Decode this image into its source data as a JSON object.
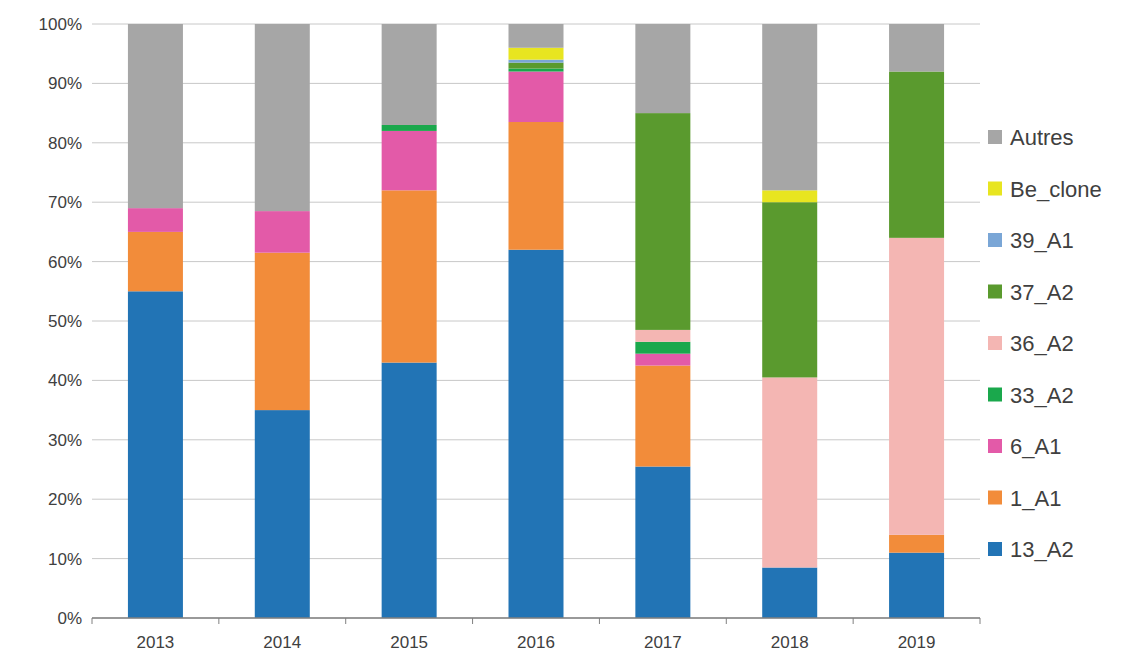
{
  "chart_data": {
    "type": "bar",
    "stacked": true,
    "grid": true,
    "legend": "right",
    "categories": [
      "2013",
      "2014",
      "2015",
      "2016",
      "2017",
      "2018",
      "2019"
    ],
    "series": [
      {
        "name": "13_A2",
        "color": "#2274b5",
        "values": [
          55,
          35,
          43,
          62,
          25.5,
          8.5,
          11
        ]
      },
      {
        "name": "1_A1",
        "color": "#f28c3a",
        "values": [
          10,
          26.5,
          29,
          21.5,
          17,
          0,
          3
        ]
      },
      {
        "name": "6_A1",
        "color": "#e35aa8",
        "values": [
          4,
          7,
          10,
          8.5,
          2,
          0,
          0
        ]
      },
      {
        "name": "33_A2",
        "color": "#1aa84c",
        "values": [
          0,
          0,
          1,
          0.5,
          2,
          0,
          0
        ]
      },
      {
        "name": "36_A2",
        "color": "#f4b6b3",
        "values": [
          0,
          0,
          0,
          0,
          2,
          32,
          50
        ]
      },
      {
        "name": "37_A2",
        "color": "#5a9a2e",
        "values": [
          0,
          0,
          0,
          1,
          36.5,
          29.5,
          28
        ]
      },
      {
        "name": "39_A1",
        "color": "#7aa6d6",
        "values": [
          0,
          0,
          0,
          0.5,
          0,
          0,
          0
        ]
      },
      {
        "name": "Be_clone",
        "color": "#e8e520",
        "values": [
          0,
          0,
          0,
          2,
          0,
          2,
          0
        ]
      },
      {
        "name": "Autres",
        "color": "#a6a6a6",
        "values": [
          31,
          31.5,
          17,
          4,
          15,
          28,
          8
        ]
      }
    ],
    "ylim": [
      0,
      100
    ],
    "yticks": [
      {
        "value": 0,
        "label": "0%"
      },
      {
        "value": 10,
        "label": "10%"
      },
      {
        "value": 20,
        "label": "20%"
      },
      {
        "value": 30,
        "label": "30%"
      },
      {
        "value": 40,
        "label": "40%"
      },
      {
        "value": 50,
        "label": "50%"
      },
      {
        "value": 60,
        "label": "60%"
      },
      {
        "value": 70,
        "label": "70%"
      },
      {
        "value": 80,
        "label": "80%"
      },
      {
        "value": 90,
        "label": "90%"
      },
      {
        "value": 100,
        "label": "100%"
      }
    ]
  }
}
